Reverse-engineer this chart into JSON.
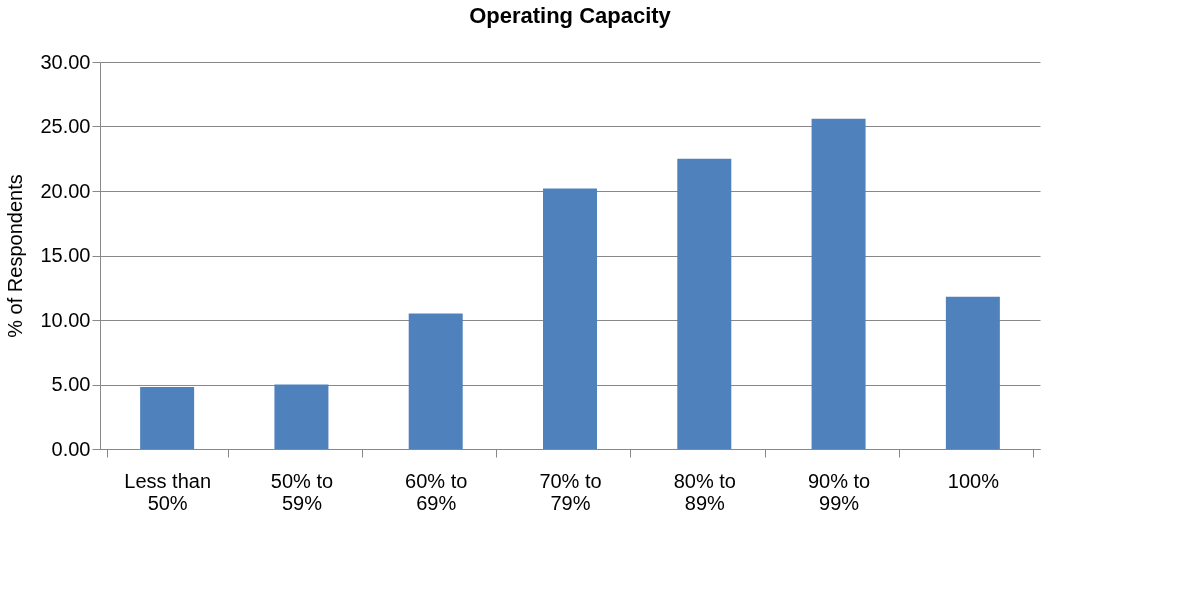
{
  "chart_data": {
    "type": "bar",
    "title": "Operating Capacity",
    "ylabel": "% of Respondents",
    "categories": [
      "Less than 50%",
      "50% to 59%",
      "60% to 69%",
      "70% to 79%",
      "80% to 89%",
      "90% to 99%",
      "100%"
    ],
    "values": [
      4.8,
      5.0,
      10.5,
      20.2,
      22.5,
      25.6,
      11.8
    ],
    "color": "#4f81bd",
    "ylim": [
      0,
      30
    ],
    "yticks": [
      {
        "value": 0,
        "label": "0.00"
      },
      {
        "value": 5,
        "label": "5.00"
      },
      {
        "value": 10,
        "label": "10.00"
      },
      {
        "value": 15,
        "label": "15.00"
      },
      {
        "value": 20,
        "label": "20.00"
      },
      {
        "value": 25,
        "label": "25.00"
      },
      {
        "value": 30,
        "label": "30.00"
      }
    ],
    "grid": "y"
  }
}
